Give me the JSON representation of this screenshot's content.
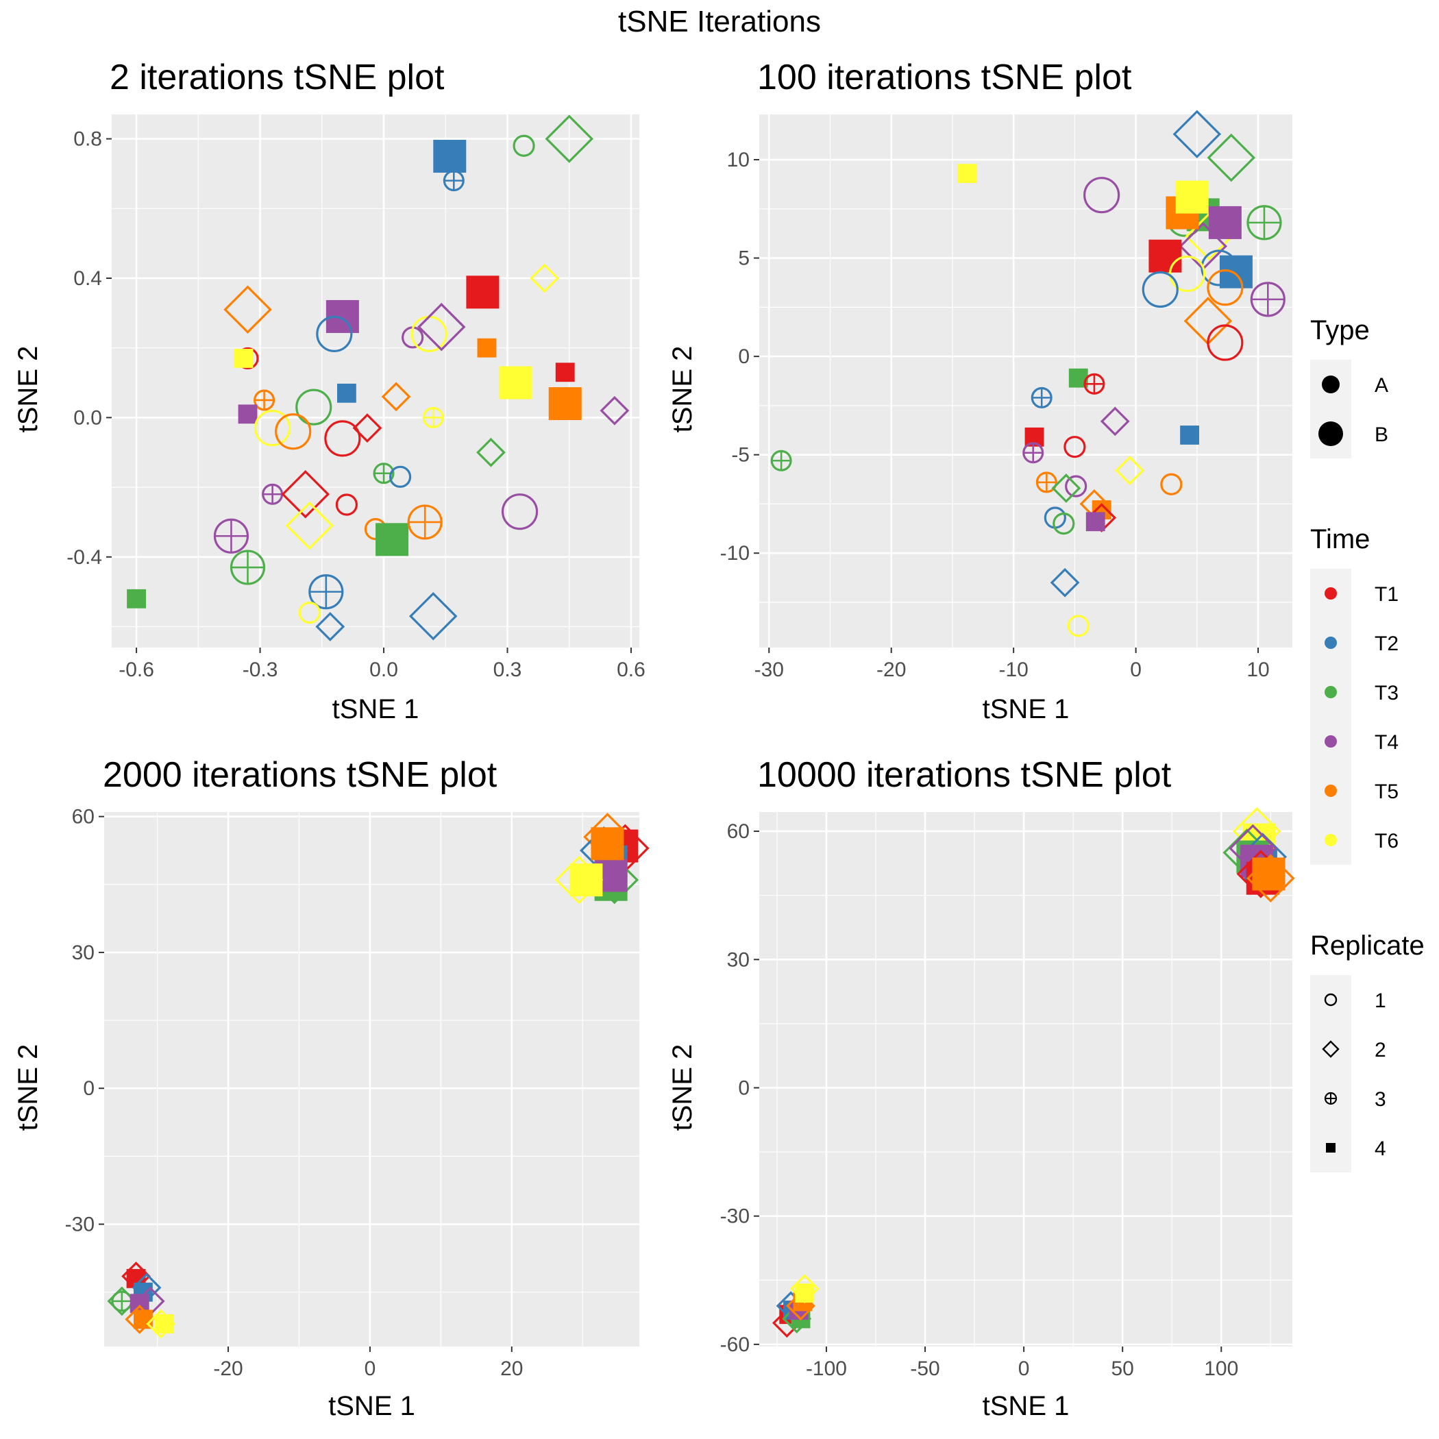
{
  "figure_title": "tSNE Iterations",
  "colors": {
    "T1": "#E41A1C",
    "T2": "#377EB8",
    "T3": "#4DAF4A",
    "T4": "#984EA3",
    "T5": "#FF7F00",
    "T6": "#FFFF33",
    "panel_bg": "#EBEBEB",
    "grid": "#FFFFFF",
    "legend_key_bg": "#F2F2F2"
  },
  "legend": {
    "type": {
      "title": "Type",
      "items": [
        {
          "label": "A",
          "size": "small"
        },
        {
          "label": "B",
          "size": "large"
        }
      ]
    },
    "time": {
      "title": "Time",
      "items": [
        "T1",
        "T2",
        "T3",
        "T4",
        "T5",
        "T6"
      ]
    },
    "replicate": {
      "title": "Replicate",
      "items": [
        {
          "label": "1",
          "shape": "circle"
        },
        {
          "label": "2",
          "shape": "diamond"
        },
        {
          "label": "3",
          "shape": "circle-plus"
        },
        {
          "label": "4",
          "shape": "square"
        }
      ]
    }
  },
  "chart_data": [
    {
      "type": "scatter",
      "title": "2 iterations tSNE plot",
      "xlabel": "tSNE 1",
      "ylabel": "tSNE 2",
      "xlim": [
        -0.66,
        0.62
      ],
      "ylim": [
        -0.66,
        0.87
      ],
      "xticks": [
        -0.6,
        -0.3,
        0.0,
        0.3,
        0.6
      ],
      "xtick_labels": [
        "-0.6",
        "-0.3",
        "0.0",
        "0.3",
        "0.6"
      ],
      "yticks": [
        -0.4,
        0.0,
        0.4,
        0.8
      ],
      "ytick_labels": [
        "-0.4",
        "0.0",
        "0.4",
        "0.8"
      ],
      "points": [
        [
          0.16,
          0.75,
          "T2",
          "4",
          "B"
        ],
        [
          0.17,
          0.68,
          "T2",
          "3",
          "A"
        ],
        [
          0.34,
          0.78,
          "T3",
          "1",
          "A"
        ],
        [
          0.45,
          0.8,
          "T3",
          "2",
          "B"
        ],
        [
          0.39,
          0.4,
          "T6",
          "2",
          "A"
        ],
        [
          0.24,
          0.36,
          "T1",
          "4",
          "B"
        ],
        [
          -0.33,
          0.31,
          "T5",
          "2",
          "B"
        ],
        [
          -0.1,
          0.29,
          "T4",
          "4",
          "B"
        ],
        [
          -0.12,
          0.24,
          "T2",
          "1",
          "B"
        ],
        [
          0.07,
          0.23,
          "T4",
          "1",
          "A"
        ],
        [
          0.11,
          0.24,
          "T6",
          "1",
          "B"
        ],
        [
          0.14,
          0.26,
          "T4",
          "2",
          "B"
        ],
        [
          0.25,
          0.2,
          "T5",
          "4",
          "A"
        ],
        [
          -0.33,
          0.17,
          "T1",
          "1",
          "A"
        ],
        [
          -0.34,
          0.17,
          "T6",
          "4",
          "A"
        ],
        [
          0.32,
          0.1,
          "T6",
          "4",
          "B"
        ],
        [
          0.44,
          0.13,
          "T1",
          "4",
          "A"
        ],
        [
          0.44,
          0.04,
          "T5",
          "4",
          "B"
        ],
        [
          0.56,
          0.02,
          "T4",
          "2",
          "A"
        ],
        [
          -0.09,
          0.07,
          "T2",
          "4",
          "A"
        ],
        [
          0.03,
          0.06,
          "T5",
          "2",
          "A"
        ],
        [
          -0.29,
          0.05,
          "T5",
          "3",
          "A"
        ],
        [
          -0.33,
          0.01,
          "T4",
          "4",
          "A"
        ],
        [
          -0.17,
          0.03,
          "T3",
          "1",
          "B"
        ],
        [
          0.12,
          0.0,
          "T6",
          "3",
          "A"
        ],
        [
          -0.27,
          -0.03,
          "T6",
          "1",
          "B"
        ],
        [
          -0.22,
          -0.04,
          "T5",
          "1",
          "B"
        ],
        [
          -0.04,
          -0.03,
          "T1",
          "2",
          "A"
        ],
        [
          -0.1,
          -0.06,
          "T1",
          "1",
          "B"
        ],
        [
          0.26,
          -0.1,
          "T3",
          "2",
          "A"
        ],
        [
          0.0,
          -0.16,
          "T3",
          "3",
          "A"
        ],
        [
          0.04,
          -0.17,
          "T2",
          "1",
          "A"
        ],
        [
          -0.27,
          -0.22,
          "T4",
          "3",
          "A"
        ],
        [
          -0.19,
          -0.22,
          "T1",
          "2",
          "B"
        ],
        [
          -0.09,
          -0.25,
          "T1",
          "1",
          "A"
        ],
        [
          0.33,
          -0.27,
          "T4",
          "1",
          "B"
        ],
        [
          -0.37,
          -0.34,
          "T4",
          "3",
          "B"
        ],
        [
          -0.18,
          -0.31,
          "T6",
          "2",
          "B"
        ],
        [
          -0.02,
          -0.32,
          "T5",
          "1",
          "A"
        ],
        [
          0.02,
          -0.35,
          "T3",
          "4",
          "B"
        ],
        [
          0.1,
          -0.3,
          "T5",
          "3",
          "B"
        ],
        [
          -0.33,
          -0.43,
          "T3",
          "3",
          "B"
        ],
        [
          -0.6,
          -0.52,
          "T3",
          "4",
          "A"
        ],
        [
          -0.14,
          -0.5,
          "T2",
          "3",
          "B"
        ],
        [
          -0.18,
          -0.56,
          "T6",
          "1",
          "A"
        ],
        [
          -0.13,
          -0.6,
          "T2",
          "2",
          "A"
        ],
        [
          0.12,
          -0.57,
          "T2",
          "2",
          "B"
        ]
      ]
    },
    {
      "type": "scatter",
      "title": "100 iterations tSNE plot",
      "xlabel": "tSNE 1",
      "ylabel": "tSNE 2",
      "xlim": [
        -30.8,
        12.8
      ],
      "ylim": [
        -14.8,
        12.3
      ],
      "xticks": [
        -30,
        -20,
        -10,
        0,
        10
      ],
      "xtick_labels": [
        "-30",
        "-20",
        "-10",
        "0",
        "10"
      ],
      "yticks": [
        -10,
        -5,
        0,
        5,
        10
      ],
      "ytick_labels": [
        "-10",
        "-5",
        "0",
        "5",
        "10"
      ],
      "points": [
        [
          -13.8,
          9.3,
          "T6",
          "4",
          "A"
        ],
        [
          -2.8,
          8.2,
          "T4",
          "1",
          "B"
        ],
        [
          5.0,
          11.3,
          "T2",
          "2",
          "B"
        ],
        [
          7.8,
          10.1,
          "T3",
          "2",
          "B"
        ],
        [
          4.0,
          7.0,
          "T3",
          "1",
          "B"
        ],
        [
          5.5,
          7.2,
          "T3",
          "4",
          "B"
        ],
        [
          6.0,
          6.1,
          "T6",
          "2",
          "B"
        ],
        [
          5.5,
          5.6,
          "T4",
          "2",
          "B"
        ],
        [
          3.8,
          7.3,
          "T5",
          "4",
          "B"
        ],
        [
          4.6,
          8.1,
          "T6",
          "4",
          "B"
        ],
        [
          7.3,
          6.8,
          "T4",
          "4",
          "B"
        ],
        [
          10.5,
          6.8,
          "T3",
          "3",
          "B"
        ],
        [
          2.4,
          5.1,
          "T1",
          "4",
          "B"
        ],
        [
          6.8,
          4.5,
          "T2",
          "1",
          "B"
        ],
        [
          4.2,
          4.2,
          "T6",
          "1",
          "B"
        ],
        [
          8.2,
          4.3,
          "T2",
          "4",
          "B"
        ],
        [
          2.0,
          3.4,
          "T2",
          "1",
          "B"
        ],
        [
          7.3,
          3.5,
          "T5",
          "1",
          "B"
        ],
        [
          10.8,
          2.9,
          "T4",
          "3",
          "B"
        ],
        [
          5.9,
          1.8,
          "T5",
          "2",
          "B"
        ],
        [
          7.3,
          0.7,
          "T1",
          "1",
          "B"
        ],
        [
          -4.7,
          -1.1,
          "T3",
          "4",
          "A"
        ],
        [
          -3.4,
          -1.4,
          "T1",
          "3",
          "A"
        ],
        [
          -7.7,
          -2.1,
          "T2",
          "3",
          "A"
        ],
        [
          -1.7,
          -3.3,
          "T4",
          "2",
          "A"
        ],
        [
          -8.3,
          -4.1,
          "T1",
          "4",
          "A"
        ],
        [
          4.4,
          -4.0,
          "T2",
          "4",
          "A"
        ],
        [
          -29.0,
          -5.3,
          "T3",
          "3",
          "A"
        ],
        [
          -8.4,
          -4.9,
          "T4",
          "3",
          "A"
        ],
        [
          -5.0,
          -4.6,
          "T1",
          "1",
          "A"
        ],
        [
          -0.5,
          -5.8,
          "T6",
          "2",
          "A"
        ],
        [
          -7.3,
          -6.4,
          "T5",
          "3",
          "A"
        ],
        [
          -4.9,
          -6.6,
          "T4",
          "1",
          "A"
        ],
        [
          2.9,
          -6.5,
          "T5",
          "1",
          "A"
        ],
        [
          -5.7,
          -6.7,
          "T3",
          "2",
          "A"
        ],
        [
          -3.4,
          -7.5,
          "T5",
          "2",
          "A"
        ],
        [
          -2.8,
          -7.8,
          "T5",
          "4",
          "A"
        ],
        [
          -2.8,
          -8.2,
          "T1",
          "2",
          "A"
        ],
        [
          -3.3,
          -8.4,
          "T4",
          "4",
          "A"
        ],
        [
          -6.6,
          -8.2,
          "T2",
          "1",
          "A"
        ],
        [
          -5.9,
          -8.5,
          "T3",
          "1",
          "A"
        ],
        [
          -5.8,
          -11.5,
          "T2",
          "2",
          "A"
        ],
        [
          -4.7,
          -13.7,
          "T6",
          "1",
          "A"
        ]
      ]
    },
    {
      "type": "scatter",
      "title": "2000 iterations tSNE plot",
      "xlabel": "tSNE 1",
      "ylabel": "tSNE 2",
      "xlim": [
        -37.5,
        38.0
      ],
      "ylim": [
        -57.0,
        61.0
      ],
      "xticks": [
        -20,
        0,
        20
      ],
      "xtick_labels": [
        "-20",
        "0",
        "20"
      ],
      "yticks": [
        -30,
        0,
        30,
        60
      ],
      "ytick_labels": [
        "-30",
        "0",
        "30",
        "60"
      ],
      "points": [
        [
          33.5,
          55.5,
          "T5",
          "2",
          "B"
        ],
        [
          35.5,
          53.5,
          "T1",
          "4",
          "B"
        ],
        [
          36.0,
          53.0,
          "T1",
          "2",
          "B"
        ],
        [
          33.0,
          52.5,
          "T2",
          "2",
          "B"
        ],
        [
          34.0,
          50.0,
          "T2",
          "4",
          "B"
        ],
        [
          34.5,
          46.0,
          "T3",
          "2",
          "B"
        ],
        [
          34.0,
          45.0,
          "T3",
          "4",
          "B"
        ],
        [
          34.0,
          47.0,
          "T4",
          "4",
          "B"
        ],
        [
          29.5,
          46.0,
          "T6",
          "2",
          "B"
        ],
        [
          30.5,
          46.0,
          "T6",
          "4",
          "B"
        ],
        [
          33.5,
          54.0,
          "T5",
          "4",
          "B"
        ],
        [
          -33.0,
          -41.5,
          "T1",
          "2",
          "A"
        ],
        [
          -33.0,
          -42.0,
          "T1",
          "4",
          "A"
        ],
        [
          -31.5,
          -44.0,
          "T2",
          "2",
          "A"
        ],
        [
          -32.0,
          -45.0,
          "T2",
          "4",
          "A"
        ],
        [
          -35.0,
          -47.0,
          "T3",
          "2",
          "A"
        ],
        [
          -35.0,
          -47.0,
          "T3",
          "3",
          "A"
        ],
        [
          -31.0,
          -47.0,
          "T4",
          "2",
          "A"
        ],
        [
          -32.5,
          -47.5,
          "T4",
          "4",
          "A"
        ],
        [
          -32.5,
          -51.0,
          "T5",
          "2",
          "A"
        ],
        [
          -32.0,
          -51.0,
          "T5",
          "4",
          "A"
        ],
        [
          -29.5,
          -52.0,
          "T6",
          "2",
          "A"
        ],
        [
          -29.0,
          -52.0,
          "T6",
          "4",
          "A"
        ]
      ]
    },
    {
      "type": "scatter",
      "title": "10000 iterations tSNE plot",
      "xlabel": "tSNE 1",
      "ylabel": "tSNE 2",
      "xlim": [
        -134,
        136
      ],
      "ylim": [
        -60.5,
        64.5
      ],
      "xticks": [
        -100,
        -50,
        0,
        50,
        100
      ],
      "xtick_labels": [
        "-100",
        "-50",
        "0",
        "50",
        "100"
      ],
      "yticks": [
        -60,
        -30,
        0,
        30,
        60
      ],
      "ytick_labels": [
        "-60",
        "-30",
        "0",
        "30",
        "60"
      ],
      "points": [
        [
          118,
          60,
          "T6",
          "2",
          "B"
        ],
        [
          119,
          58,
          "T6",
          "4",
          "B"
        ],
        [
          113,
          55,
          "T3",
          "2",
          "B"
        ],
        [
          116,
          54,
          "T3",
          "4",
          "B"
        ],
        [
          121,
          54,
          "T2",
          "2",
          "B"
        ],
        [
          120,
          52,
          "T2",
          "4",
          "B"
        ],
        [
          116,
          56,
          "T4",
          "2",
          "B"
        ],
        [
          118,
          53,
          "T4",
          "4",
          "B"
        ],
        [
          120,
          50,
          "T1",
          "2",
          "B"
        ],
        [
          121,
          49,
          "T1",
          "4",
          "B"
        ],
        [
          125,
          49,
          "T5",
          "2",
          "B"
        ],
        [
          124,
          50,
          "T5",
          "4",
          "B"
        ],
        [
          -120,
          -55,
          "T1",
          "2",
          "A"
        ],
        [
          -119,
          -53,
          "T1",
          "4",
          "A"
        ],
        [
          -118,
          -51,
          "T2",
          "2",
          "A"
        ],
        [
          -117,
          -52,
          "T2",
          "4",
          "A"
        ],
        [
          -115,
          -54,
          "T3",
          "2",
          "A"
        ],
        [
          -113,
          -54,
          "T3",
          "4",
          "A"
        ],
        [
          -114,
          -52,
          "T4",
          "4",
          "A"
        ],
        [
          -113,
          -51,
          "T5",
          "2",
          "A"
        ],
        [
          -112,
          -50,
          "T5",
          "4",
          "A"
        ],
        [
          -111,
          -47,
          "T6",
          "2",
          "A"
        ],
        [
          -111,
          -48,
          "T6",
          "4",
          "A"
        ]
      ]
    }
  ]
}
